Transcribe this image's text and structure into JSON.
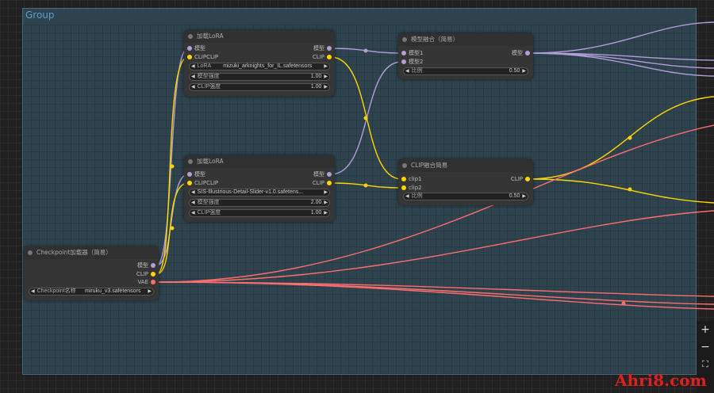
{
  "group": {
    "title": "Group"
  },
  "nodes": {
    "lora1": {
      "title": "加载LoRA",
      "in_model": "模型",
      "in_clip": "CLIPCLIP",
      "out_model": "模型",
      "out_clip": "CLIP",
      "lora_label": "LoRA",
      "lora_value": "mizuki_arknights_for_IL.safetensors",
      "model_strength_label": "模型强度",
      "model_strength": "1.00",
      "clip_strength_label": "CLIP强度",
      "clip_strength": "1.00"
    },
    "lora2": {
      "title": "加载LoRA",
      "in_model": "模型",
      "in_clip": "CLIPCLIP",
      "out_model": "模型",
      "out_clip": "CLIP",
      "lora_value": "SIS-Illustrious-Detail-Slider-v1.0.safetens...",
      "model_strength_label": "模型强度",
      "model_strength": "2.00",
      "clip_strength_label": "CLIP强度",
      "clip_strength": "1.00"
    },
    "checkpoint": {
      "title": "Checkpoint加载器（简易）",
      "out_model": "模型",
      "out_clip": "CLIP",
      "out_vae": "VAE",
      "ckpt_label": "Checkpoint名称",
      "ckpt_value": "miruku_v3.safetensors"
    },
    "model_merge": {
      "title": "模型融合（简易）",
      "in1": "模型1",
      "in2": "模型2",
      "out": "模型",
      "ratio_label": "比例",
      "ratio": "0.50"
    },
    "clip_merge": {
      "title": "CLIP融合简易",
      "in1": "clip1",
      "in2": "clip2",
      "out": "CLIP",
      "ratio_label": "比例",
      "ratio": "0.50"
    }
  },
  "colors": {
    "model": "#b39ddb",
    "clip": "#ffd500",
    "vae": "#ff6e6e"
  },
  "controls": {
    "zoom_in": "+",
    "zoom_out": "−",
    "fit": "⛶"
  },
  "watermark": "Ahri8.com"
}
